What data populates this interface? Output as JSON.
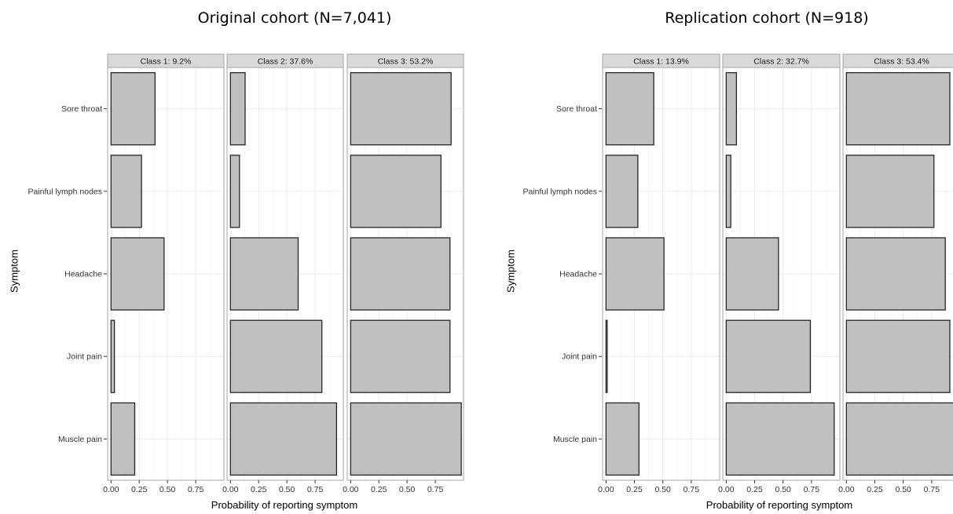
{
  "chart_data": [
    {
      "type": "bar",
      "orientation": "horizontal",
      "title": "Original cohort (N=7,041)",
      "xlabel": "Probability of reporting symptom",
      "ylabel": "Symptom",
      "categories": [
        "Sore throat",
        "Painful lymph nodes",
        "Headache",
        "Joint pain",
        "Muscle pain"
      ],
      "xlim": [
        -0.03,
        1.0
      ],
      "xticks": [
        "0.00",
        "0.25",
        "0.50",
        "0.75"
      ],
      "grid": true,
      "panels": [
        {
          "label": "Class 1: 9.2%",
          "values": [
            0.39,
            0.27,
            0.47,
            0.03,
            0.21
          ]
        },
        {
          "label": "Class 2: 37.6%",
          "values": [
            0.13,
            0.08,
            0.6,
            0.81,
            0.94
          ]
        },
        {
          "label": "Class 3: 53.2%",
          "values": [
            0.89,
            0.8,
            0.88,
            0.88,
            0.98
          ]
        }
      ]
    },
    {
      "type": "bar",
      "orientation": "horizontal",
      "title": "Replication cohort (N=918)",
      "xlabel": "Probability of reporting symptom",
      "ylabel": "Symptom",
      "categories": [
        "Sore throat",
        "Painful lymph nodes",
        "Headache",
        "Joint pain",
        "Muscle pain"
      ],
      "xlim": [
        -0.03,
        1.0
      ],
      "xticks": [
        "0.00",
        "0.25",
        "0.50",
        "0.75"
      ],
      "grid": true,
      "panels": [
        {
          "label": "Class 1: 13.9%",
          "values": [
            0.42,
            0.28,
            0.51,
            0.01,
            0.29
          ]
        },
        {
          "label": "Class 2: 32.7%",
          "values": [
            0.09,
            0.04,
            0.46,
            0.74,
            0.95
          ]
        },
        {
          "label": "Class 3: 53.4%",
          "values": [
            0.91,
            0.77,
            0.87,
            0.91,
            0.95
          ]
        }
      ]
    }
  ],
  "colors": {
    "bar_fill": "#c0c0c0",
    "bar_stroke": "#262626",
    "strip_fill": "#d9d9d9",
    "panel_border": "#a6a6a6",
    "grid_major": "#ebebeb",
    "grid_minor": "#f4f4f4"
  }
}
